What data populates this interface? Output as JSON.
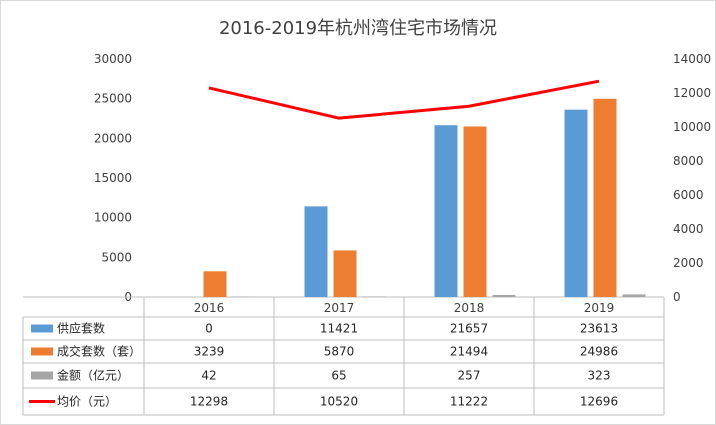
{
  "chart_data": {
    "type": "bar",
    "title": "2016-2019年杭州湾住宅市场情况",
    "categories": [
      "2016",
      "2017",
      "2018",
      "2019"
    ],
    "y_left": {
      "ylim": [
        0,
        30000
      ],
      "ticks": [
        "0",
        "5000",
        "10000",
        "15000",
        "20000",
        "25000",
        "30000"
      ]
    },
    "y_right": {
      "ylim": [
        0,
        14000
      ],
      "ticks": [
        "0",
        "2000",
        "4000",
        "6000",
        "8000",
        "10000",
        "12000",
        "14000"
      ]
    },
    "grid": false,
    "legend": "data-table",
    "series": [
      {
        "name": "供应套数",
        "kind": "bar",
        "axis": "left",
        "color": "#5b9bd5",
        "values": [
          0,
          11421,
          21657,
          23613
        ]
      },
      {
        "name": "成交套数（套）",
        "kind": "bar",
        "axis": "left",
        "color": "#ed7d31",
        "values": [
          3239,
          5870,
          21494,
          24986
        ]
      },
      {
        "name": "金额（亿元）",
        "kind": "bar",
        "axis": "left",
        "color": "#a5a5a5",
        "values": [
          42,
          65,
          257,
          323
        ]
      },
      {
        "name": "均价（元）",
        "kind": "line",
        "axis": "right",
        "color": "#ff0000",
        "values": [
          12298,
          10520,
          11222,
          12696
        ]
      }
    ]
  }
}
